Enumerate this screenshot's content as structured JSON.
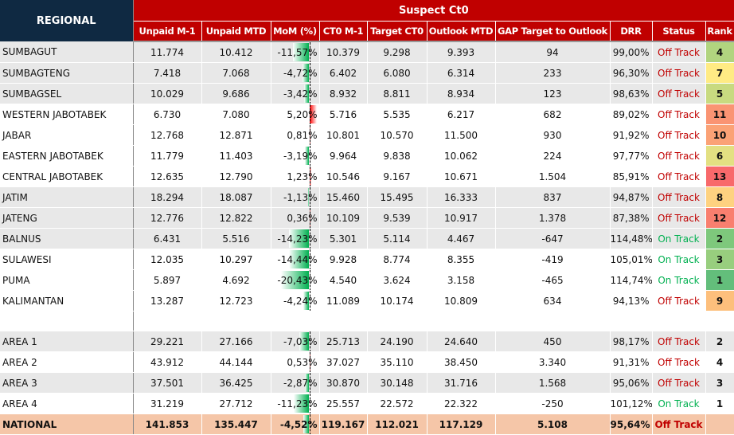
{
  "header": {
    "regional": "REGIONAL",
    "group": "Suspect Ct0",
    "columns": [
      "Unpaid M-1",
      "Unpaid MTD",
      "MoM (%)",
      "CT0 M-1",
      "Target CT0",
      "Outlook MTD",
      "GAP Target to Outlook",
      "DRR",
      "Status",
      "Rank"
    ]
  },
  "colors": {
    "header_navy": "#0f2942",
    "header_red": "#c00000",
    "off_track": "#c00000",
    "on_track": "#00b050",
    "national_bg": "#f5c6a8",
    "row_gray": "#e8e8e8"
  },
  "rows": [
    {
      "name": "SUMBAGUT",
      "unpaid_m1": "11.774",
      "unpaid_mtd": "10.412",
      "mom": "-11,57%",
      "mom_value": -11.57,
      "ct0_m1": "10.379",
      "target": "9.298",
      "outlook": "9.393",
      "gap": "94",
      "drr": "99,00%",
      "status": "Off Track",
      "rank": "4",
      "rank_color": "#b1d47f",
      "shade": true
    },
    {
      "name": "SUMBAGTENG",
      "unpaid_m1": "7.418",
      "unpaid_mtd": "7.068",
      "mom": "-4,72%",
      "mom_value": -4.72,
      "ct0_m1": "6.402",
      "target": "6.080",
      "outlook": "6.314",
      "gap": "233",
      "drr": "96,30%",
      "status": "Off Track",
      "rank": "7",
      "rank_color": "#ffeb84",
      "shade": true
    },
    {
      "name": "SUMBAGSEL",
      "unpaid_m1": "10.029",
      "unpaid_mtd": "9.686",
      "mom": "-3,42%",
      "mom_value": -3.42,
      "ct0_m1": "8.932",
      "target": "8.811",
      "outlook": "8.934",
      "gap": "123",
      "drr": "98,63%",
      "status": "Off Track",
      "rank": "5",
      "rank_color": "#c8da80",
      "shade": true
    },
    {
      "name": "WESTERN JABOTABEK",
      "unpaid_m1": "6.730",
      "unpaid_mtd": "7.080",
      "mom": "5,20%",
      "mom_value": 5.2,
      "ct0_m1": "5.716",
      "target": "5.535",
      "outlook": "6.217",
      "gap": "682",
      "drr": "89,02%",
      "status": "Off Track",
      "rank": "11",
      "rank_color": "#fa9473",
      "shade": false
    },
    {
      "name": "JABAR",
      "unpaid_m1": "12.768",
      "unpaid_mtd": "12.871",
      "mom": "0,81%",
      "mom_value": 0.81,
      "ct0_m1": "10.801",
      "target": "10.570",
      "outlook": "11.500",
      "gap": "930",
      "drr": "91,92%",
      "status": "Off Track",
      "rank": "10",
      "rank_color": "#fba276",
      "shade": false
    },
    {
      "name": "EASTERN JABOTABEK",
      "unpaid_m1": "11.779",
      "unpaid_mtd": "11.403",
      "mom": "-3,19%",
      "mom_value": -3.19,
      "ct0_m1": "9.964",
      "target": "9.838",
      "outlook": "10.062",
      "gap": "224",
      "drr": "97,77%",
      "status": "Off Track",
      "rank": "6",
      "rank_color": "#e3e082",
      "shade": false
    },
    {
      "name": "CENTRAL JABOTABEK",
      "unpaid_m1": "12.635",
      "unpaid_mtd": "12.790",
      "mom": "1,23%",
      "mom_value": 1.23,
      "ct0_m1": "10.546",
      "target": "9.167",
      "outlook": "10.671",
      "gap": "1.504",
      "drr": "85,91%",
      "status": "Off Track",
      "rank": "13",
      "rank_color": "#f8696b",
      "shade": false
    },
    {
      "name": "JATIM",
      "unpaid_m1": "18.294",
      "unpaid_mtd": "18.087",
      "mom": "-1,13%",
      "mom_value": -1.13,
      "ct0_m1": "15.460",
      "target": "15.495",
      "outlook": "16.333",
      "gap": "837",
      "drr": "94,87%",
      "status": "Off Track",
      "rank": "8",
      "rank_color": "#fed280",
      "shade": true
    },
    {
      "name": "JATENG",
      "unpaid_m1": "12.776",
      "unpaid_mtd": "12.822",
      "mom": "0,36%",
      "mom_value": 0.36,
      "ct0_m1": "10.109",
      "target": "9.539",
      "outlook": "10.917",
      "gap": "1.378",
      "drr": "87,38%",
      "status": "Off Track",
      "rank": "12",
      "rank_color": "#f97f6f",
      "shade": true
    },
    {
      "name": "BALNUS",
      "unpaid_m1": "6.431",
      "unpaid_mtd": "5.516",
      "mom": "-14,23%",
      "mom_value": -14.23,
      "ct0_m1": "5.301",
      "target": "5.114",
      "outlook": "4.467",
      "gap": "-647",
      "drr": "114,48%",
      "status": "On Track",
      "rank": "2",
      "rank_color": "#7ec87c",
      "shade": true
    },
    {
      "name": "SULAWESI",
      "unpaid_m1": "12.035",
      "unpaid_mtd": "10.297",
      "mom": "-14,44%",
      "mom_value": -14.44,
      "ct0_m1": "9.928",
      "target": "8.774",
      "outlook": "8.355",
      "gap": "-419",
      "drr": "105,01%",
      "status": "On Track",
      "rank": "3",
      "rank_color": "#98ce7e",
      "shade": false
    },
    {
      "name": "PUMA",
      "unpaid_m1": "5.897",
      "unpaid_mtd": "4.692",
      "mom": "-20,43%",
      "mom_value": -20.43,
      "ct0_m1": "4.540",
      "target": "3.624",
      "outlook": "3.158",
      "gap": "-465",
      "drr": "114,74%",
      "status": "On Track",
      "rank": "1",
      "rank_color": "#63be7b",
      "shade": false
    },
    {
      "name": "KALIMANTAN",
      "unpaid_m1": "13.287",
      "unpaid_mtd": "12.723",
      "mom": "-4,24%",
      "mom_value": -4.24,
      "ct0_m1": "11.089",
      "target": "10.174",
      "outlook": "10.809",
      "gap": "634",
      "drr": "94,13%",
      "status": "Off Track",
      "rank": "9",
      "rank_color": "#fdbf7c",
      "shade": false
    }
  ],
  "areas": [
    {
      "name": "AREA 1",
      "unpaid_m1": "29.221",
      "unpaid_mtd": "27.166",
      "mom": "-7,03%",
      "mom_value": -7.03,
      "ct0_m1": "25.713",
      "target": "24.190",
      "outlook": "24.640",
      "gap": "450",
      "drr": "98,17%",
      "status": "Off Track",
      "rank": "2",
      "shade": true
    },
    {
      "name": "AREA 2",
      "unpaid_m1": "43.912",
      "unpaid_mtd": "44.144",
      "mom": "0,53%",
      "mom_value": 0.53,
      "ct0_m1": "37.027",
      "target": "35.110",
      "outlook": "38.450",
      "gap": "3.340",
      "drr": "91,31%",
      "status": "Off Track",
      "rank": "4",
      "shade": false
    },
    {
      "name": "AREA 3",
      "unpaid_m1": "37.501",
      "unpaid_mtd": "36.425",
      "mom": "-2,87%",
      "mom_value": -2.87,
      "ct0_m1": "30.870",
      "target": "30.148",
      "outlook": "31.716",
      "gap": "1.568",
      "drr": "95,06%",
      "status": "Off Track",
      "rank": "3",
      "shade": true
    },
    {
      "name": "AREA 4",
      "unpaid_m1": "31.219",
      "unpaid_mtd": "27.712",
      "mom": "-11,23%",
      "mom_value": -11.23,
      "ct0_m1": "25.557",
      "target": "22.572",
      "outlook": "22.322",
      "gap": "-250",
      "drr": "101,12%",
      "status": "On Track",
      "rank": "1",
      "shade": false
    }
  ],
  "national": {
    "name": "NATIONAL",
    "unpaid_m1": "141.853",
    "unpaid_mtd": "135.447",
    "mom": "-4,52%",
    "mom_value": -4.52,
    "ct0_m1": "119.167",
    "target": "112.021",
    "outlook": "117.129",
    "gap": "5.108",
    "drr": "95,64%",
    "status": "Off Track",
    "rank": ""
  }
}
